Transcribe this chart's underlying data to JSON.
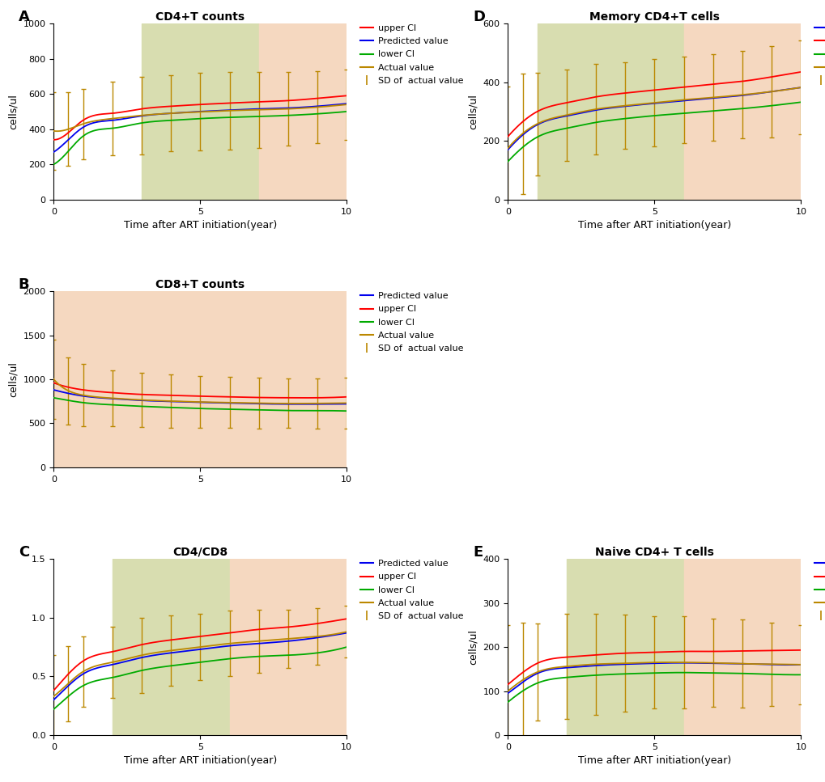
{
  "panels": {
    "A": {
      "label": "A",
      "title": "CD4+T counts",
      "ylabel": "cells/ul",
      "xlabel": "Time after ART initiation(year)",
      "ylim": [
        0,
        1000
      ],
      "yticks": [
        0,
        200,
        400,
        600,
        800,
        1000
      ],
      "xlim": [
        0,
        10
      ],
      "xticks": [
        0,
        5,
        10
      ],
      "green_shade": [
        3,
        7
      ],
      "pink_shade": [
        7,
        10
      ],
      "curves": {
        "upper_ci": [
          340,
          380,
          450,
          490,
          515,
          530,
          540,
          548,
          555,
          562,
          575,
          590
        ],
        "predicted": [
          270,
          340,
          410,
          450,
          475,
          490,
          500,
          508,
          515,
          520,
          530,
          545
        ],
        "lower_ci": [
          200,
          275,
          360,
          405,
          435,
          450,
          460,
          467,
          472,
          478,
          487,
          500
        ],
        "actual": [
          390,
          400,
          430,
          460,
          478,
          490,
          498,
          505,
          510,
          515,
          525,
          540
        ]
      },
      "eb_x": [
        0,
        0.5,
        1,
        2,
        3,
        4,
        5,
        6,
        7,
        8,
        9,
        10
      ],
      "eb_actual": [
        390,
        400,
        430,
        460,
        478,
        490,
        498,
        505,
        510,
        515,
        525,
        540
      ],
      "eb_sd": [
        220,
        210,
        200,
        210,
        220,
        215,
        220,
        220,
        215,
        210,
        205,
        200
      ],
      "legend_order": [
        "upper_ci",
        "predicted",
        "lower_ci",
        "actual",
        "sd"
      ]
    },
    "B": {
      "label": "B",
      "title": "CD8+T counts",
      "ylabel": "cells/ul",
      "xlabel": "",
      "ylim": [
        0,
        2000
      ],
      "yticks": [
        0,
        500,
        1000,
        1500,
        2000
      ],
      "xlim": [
        0,
        10
      ],
      "xticks": [
        0,
        5,
        10
      ],
      "green_shade": null,
      "pink_shade": [
        0,
        10
      ],
      "curves": {
        "predicted": [
          880,
          840,
          810,
          780,
          760,
          748,
          738,
          730,
          722,
          718,
          718,
          720
        ],
        "upper_ci": [
          960,
          910,
          880,
          848,
          828,
          818,
          808,
          800,
          793,
          790,
          790,
          800
        ],
        "lower_ci": [
          790,
          760,
          735,
          710,
          693,
          680,
          668,
          660,
          652,
          645,
          644,
          640
        ],
        "actual": [
          1000,
          870,
          820,
          785,
          765,
          752,
          742,
          735,
          728,
          725,
          726,
          730
        ]
      },
      "eb_x": [
        0,
        0.5,
        1,
        2,
        3,
        4,
        5,
        6,
        7,
        8,
        9,
        10
      ],
      "eb_actual": [
        1000,
        870,
        820,
        785,
        765,
        752,
        742,
        735,
        728,
        725,
        726,
        730
      ],
      "eb_sd": [
        450,
        380,
        350,
        320,
        310,
        300,
        295,
        290,
        290,
        280,
        285,
        290
      ],
      "legend_order": [
        "predicted",
        "upper_ci",
        "lower_ci",
        "actual",
        "sd"
      ]
    },
    "C": {
      "label": "C",
      "title": "CD4/CD8",
      "ylabel": "",
      "xlabel": "Time after ART initiation(year)",
      "ylim": [
        0.0,
        1.5
      ],
      "yticks": [
        0.0,
        0.5,
        1.0,
        1.5
      ],
      "xlim": [
        0,
        10
      ],
      "xticks": [
        0,
        5,
        10
      ],
      "green_shade": [
        2,
        6
      ],
      "pink_shade": [
        6,
        10
      ],
      "curves": {
        "predicted": [
          0.3,
          0.42,
          0.52,
          0.6,
          0.66,
          0.7,
          0.73,
          0.76,
          0.78,
          0.8,
          0.83,
          0.87
        ],
        "upper_ci": [
          0.38,
          0.52,
          0.63,
          0.71,
          0.77,
          0.81,
          0.84,
          0.87,
          0.9,
          0.92,
          0.95,
          0.99
        ],
        "lower_ci": [
          0.22,
          0.33,
          0.42,
          0.49,
          0.55,
          0.59,
          0.62,
          0.65,
          0.67,
          0.68,
          0.7,
          0.75
        ],
        "actual": [
          0.33,
          0.44,
          0.54,
          0.62,
          0.68,
          0.72,
          0.75,
          0.78,
          0.8,
          0.82,
          0.84,
          0.88
        ]
      },
      "eb_x": [
        0,
        0.5,
        1,
        2,
        3,
        4,
        5,
        6,
        7,
        8,
        9,
        10
      ],
      "eb_actual": [
        0.33,
        0.44,
        0.54,
        0.62,
        0.68,
        0.72,
        0.75,
        0.78,
        0.8,
        0.82,
        0.84,
        0.88
      ],
      "eb_sd": [
        0.35,
        0.32,
        0.3,
        0.3,
        0.32,
        0.3,
        0.28,
        0.28,
        0.27,
        0.25,
        0.24,
        0.22
      ],
      "legend_order": [
        "predicted",
        "upper_ci",
        "lower_ci",
        "actual",
        "sd"
      ]
    },
    "D": {
      "label": "D",
      "title": "Memory CD4+T cells",
      "ylabel": "cells/ul",
      "xlabel": "Time after ART initiation(year)",
      "ylim": [
        0,
        600
      ],
      "yticks": [
        0,
        200,
        400,
        600
      ],
      "xlim": [
        0,
        10
      ],
      "xticks": [
        0,
        5,
        10
      ],
      "green_shade": [
        1,
        6
      ],
      "pink_shade": [
        6,
        10
      ],
      "curves": {
        "predicted": [
          170,
          220,
          255,
          285,
          305,
          318,
          328,
          337,
          346,
          355,
          368,
          382
        ],
        "upper_ci": [
          215,
          265,
          300,
          330,
          350,
          363,
          373,
          383,
          393,
          403,
          418,
          435
        ],
        "lower_ci": [
          130,
          178,
          213,
          243,
          263,
          276,
          286,
          294,
          302,
          310,
          320,
          332
        ],
        "actual": [
          175,
          225,
          258,
          288,
          308,
          320,
          330,
          340,
          348,
          357,
          368,
          382
        ]
      },
      "eb_x": [
        0,
        0.5,
        1,
        2,
        3,
        4,
        5,
        6,
        7,
        8,
        9,
        10
      ],
      "eb_actual": [
        175,
        225,
        258,
        288,
        308,
        320,
        330,
        340,
        348,
        357,
        368,
        382
      ],
      "eb_sd": [
        210,
        205,
        175,
        155,
        155,
        148,
        148,
        148,
        148,
        148,
        155,
        160
      ],
      "legend_order": [
        "predicted",
        "upper_ci",
        "lower_ci",
        "actual",
        "sd"
      ]
    },
    "E": {
      "label": "E",
      "title": "Naive CD4+ T cells",
      "ylabel": "cells/ul",
      "xlabel": "Time after ART initiation(year)",
      "ylim": [
        0,
        400
      ],
      "yticks": [
        0,
        100,
        200,
        300,
        400
      ],
      "xlim": [
        0,
        10
      ],
      "xticks": [
        0,
        5,
        10
      ],
      "green_shade": [
        2,
        6
      ],
      "pink_shade": [
        6,
        10
      ],
      "curves": {
        "predicted": [
          95,
          120,
          140,
          153,
          158,
          161,
          163,
          164,
          163,
          162,
          160,
          160
        ],
        "upper_ci": [
          115,
          142,
          163,
          177,
          182,
          186,
          188,
          190,
          190,
          191,
          192,
          193
        ],
        "lower_ci": [
          75,
          100,
          118,
          131,
          136,
          139,
          141,
          142,
          141,
          140,
          138,
          137
        ],
        "actual": [
          100,
          125,
          143,
          156,
          161,
          163,
          165,
          165,
          164,
          162,
          161,
          160
        ]
      },
      "eb_x": [
        0,
        0.5,
        1,
        2,
        3,
        4,
        5,
        6,
        7,
        8,
        9,
        10
      ],
      "eb_actual": [
        100,
        125,
        143,
        156,
        161,
        163,
        165,
        165,
        164,
        162,
        161,
        160
      ],
      "eb_sd": [
        150,
        130,
        110,
        120,
        115,
        110,
        105,
        105,
        100,
        100,
        95,
        90
      ],
      "legend_order": [
        "predicted",
        "upper_ci",
        "lower_ci",
        "actual",
        "sd"
      ]
    }
  },
  "colors": {
    "upper_ci": "#FF0000",
    "predicted": "#0000EE",
    "lower_ci": "#00AA00",
    "actual": "#BB8800",
    "sd": "#BB8800",
    "green_shade": "#d8ddb0",
    "pink_shade": "#f5d8c0"
  },
  "legend_labels": {
    "upper_ci": "upper CI",
    "predicted": "Predicted value",
    "lower_ci": "lower CI",
    "actual": "Actual value",
    "sd": "SD of  actual value"
  }
}
